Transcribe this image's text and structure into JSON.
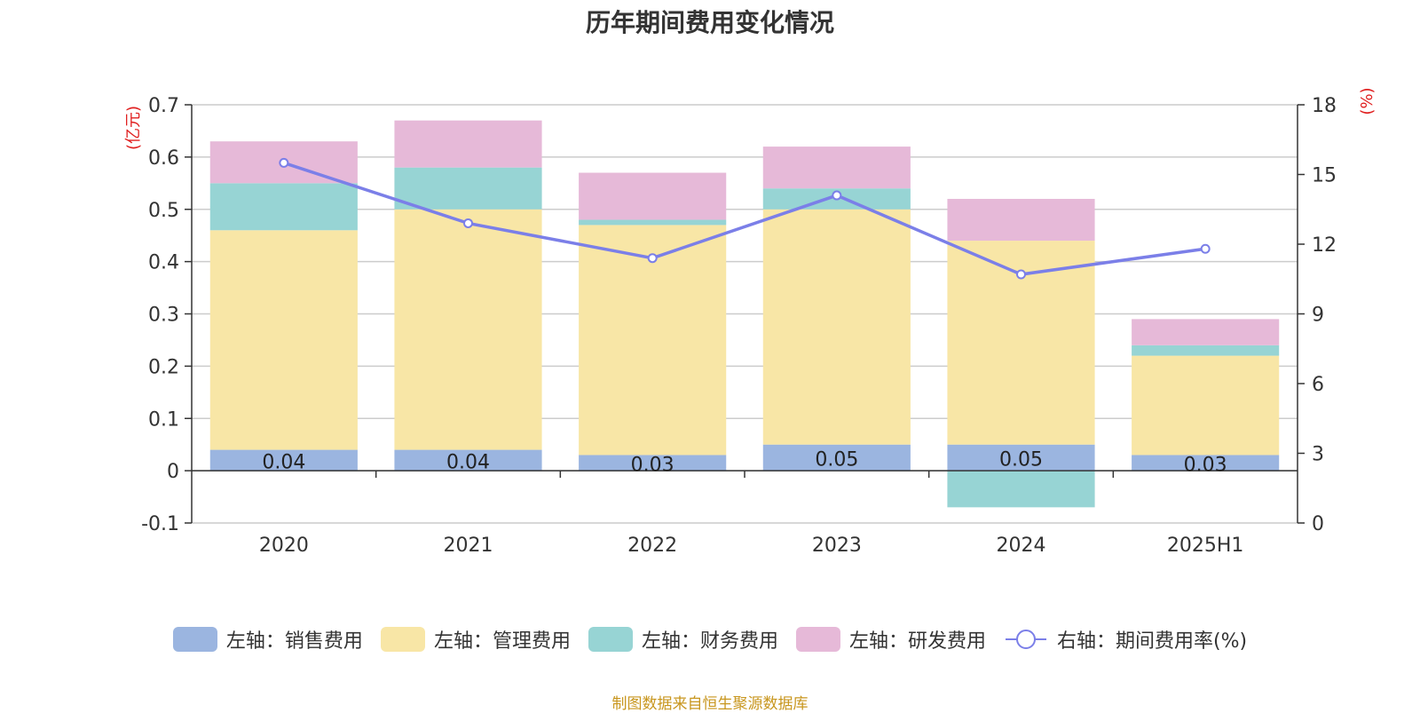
{
  "chart_data": {
    "type": "bar",
    "stacked": true,
    "title": "历年期间费用变化情况",
    "categories": [
      "2020",
      "2021",
      "2022",
      "2023",
      "2024",
      "2025H1"
    ],
    "left_axis": {
      "unit_label": "(亿元)",
      "ylim": [
        -0.1,
        0.7
      ],
      "ticks": [
        "0.7",
        "0.6",
        "0.5",
        "0.4",
        "0.3",
        "0.2",
        "0.1",
        "0",
        "-0.1"
      ]
    },
    "right_axis": {
      "unit_label": "(%)",
      "ylim": [
        0,
        18
      ],
      "ticks": [
        "18",
        "15",
        "12",
        "9",
        "6",
        "3",
        "0"
      ]
    },
    "series": [
      {
        "name": "左轴：销售费用",
        "axis": "left",
        "color": "#9bb5e0",
        "values": [
          0.04,
          0.04,
          0.03,
          0.05,
          0.05,
          0.03
        ],
        "data_labels": [
          "0.04",
          "0.04",
          "0.03",
          "0.05",
          "0.05",
          "0.03"
        ]
      },
      {
        "name": "左轴：管理费用",
        "axis": "left",
        "color": "#f8e6a6",
        "values": [
          0.42,
          0.46,
          0.44,
          0.45,
          0.39,
          0.19
        ]
      },
      {
        "name": "左轴：财务费用",
        "axis": "left",
        "color": "#97d4d4",
        "values": [
          0.09,
          0.08,
          0.01,
          0.04,
          -0.07,
          0.02
        ]
      },
      {
        "name": "左轴：研发费用",
        "axis": "left",
        "color": "#e6b9d8",
        "values": [
          0.08,
          0.09,
          0.09,
          0.08,
          0.08,
          0.05
        ]
      },
      {
        "name": "右轴：期间费用率(%)",
        "axis": "right",
        "type": "line",
        "color": "#7b7fe8",
        "values": [
          15.5,
          12.9,
          11.4,
          14.1,
          10.7,
          11.8
        ]
      }
    ],
    "grid": true,
    "legend_position": "bottom"
  },
  "source_note": "制图数据来自恒生聚源数据库"
}
